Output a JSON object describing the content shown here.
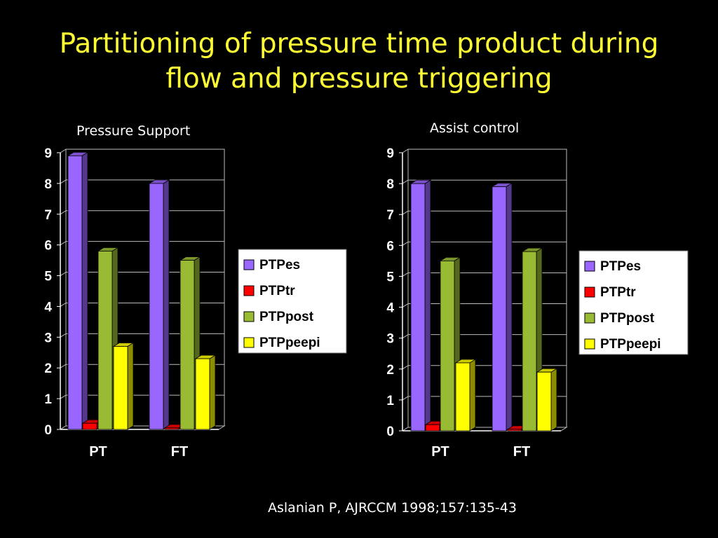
{
  "slide": {
    "title_line1": "Partitioning of pressure time product during",
    "title_line2": "flow and pressure triggering",
    "citation": "Aslanian P, AJRCCM 1998;157:135-43"
  },
  "chart_data": [
    {
      "type": "bar",
      "title": "Pressure Support",
      "categories": [
        "PT",
        "FT"
      ],
      "series": [
        {
          "name": "PTPes",
          "color": "#9966ff",
          "values": [
            8.9,
            8.0
          ]
        },
        {
          "name": "PTPtr",
          "color": "#ff0000",
          "values": [
            0.2,
            0.05
          ]
        },
        {
          "name": "PTPpost",
          "color": "#99bb33",
          "values": [
            5.8,
            5.5
          ]
        },
        {
          "name": "PTPpeepi",
          "color": "#ffff00",
          "values": [
            2.7,
            2.3
          ]
        }
      ],
      "ylim": [
        0,
        9
      ],
      "yticks": [
        "0",
        "1",
        "2",
        "3",
        "4",
        "5",
        "6",
        "7",
        "8",
        "9"
      ],
      "grid": true,
      "legend": "right"
    },
    {
      "type": "bar",
      "title": "Assist control",
      "categories": [
        "PT",
        "FT"
      ],
      "series": [
        {
          "name": "PTPes",
          "color": "#9966ff",
          "values": [
            8.0,
            7.9
          ]
        },
        {
          "name": "PTPtr",
          "color": "#ff0000",
          "values": [
            0.2,
            0.05
          ]
        },
        {
          "name": "PTPpost",
          "color": "#99bb33",
          "values": [
            5.5,
            5.8
          ]
        },
        {
          "name": "PTPpeepi",
          "color": "#ffff00",
          "values": [
            2.2,
            1.9
          ]
        }
      ],
      "ylim": [
        0,
        9
      ],
      "yticks": [
        "0",
        "1",
        "2",
        "3",
        "4",
        "5",
        "6",
        "7",
        "8",
        "9"
      ],
      "grid": true,
      "legend": "right"
    }
  ]
}
